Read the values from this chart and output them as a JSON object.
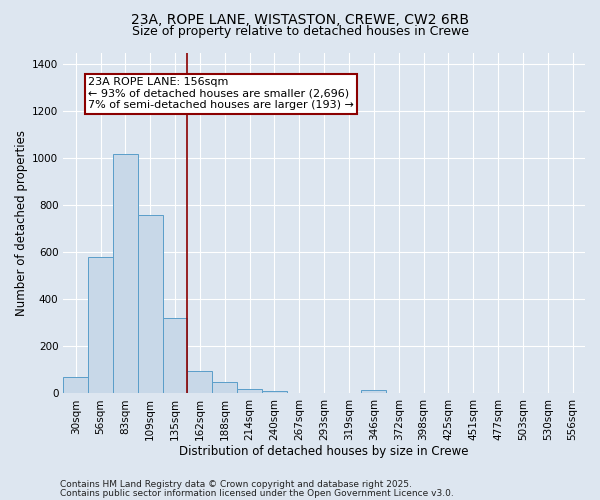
{
  "title_line1": "23A, ROPE LANE, WISTASTON, CREWE, CW2 6RB",
  "title_line2": "Size of property relative to detached houses in Crewe",
  "xlabel": "Distribution of detached houses by size in Crewe",
  "ylabel": "Number of detached properties",
  "categories": [
    "30sqm",
    "56sqm",
    "83sqm",
    "109sqm",
    "135sqm",
    "162sqm",
    "188sqm",
    "214sqm",
    "240sqm",
    "267sqm",
    "293sqm",
    "319sqm",
    "346sqm",
    "372sqm",
    "398sqm",
    "425sqm",
    "451sqm",
    "477sqm",
    "503sqm",
    "530sqm",
    "556sqm"
  ],
  "values": [
    68,
    580,
    1020,
    760,
    320,
    95,
    47,
    18,
    8,
    2,
    0,
    0,
    14,
    0,
    0,
    0,
    0,
    0,
    0,
    0,
    0
  ],
  "bar_color": "#c8d8e8",
  "bar_edge_color": "#5a9ec9",
  "vline_x": 4.5,
  "vline_color": "#8b0000",
  "annotation_line1": "23A ROPE LANE: 156sqm",
  "annotation_line2": "← 93% of detached houses are smaller (2,696)",
  "annotation_line3": "7% of semi-detached houses are larger (193) →",
  "annotation_box_facecolor": "#ffffff",
  "annotation_box_edgecolor": "#8b0000",
  "ylim": [
    0,
    1450
  ],
  "yticks": [
    0,
    200,
    400,
    600,
    800,
    1000,
    1200,
    1400
  ],
  "background_color": "#dde6f0",
  "axes_background": "#dde6f0",
  "grid_color": "#c0ccd8",
  "footer_line1": "Contains HM Land Registry data © Crown copyright and database right 2025.",
  "footer_line2": "Contains public sector information licensed under the Open Government Licence v3.0.",
  "title_fontsize": 10,
  "subtitle_fontsize": 9,
  "axis_label_fontsize": 8.5,
  "tick_fontsize": 7.5,
  "annotation_fontsize": 8,
  "footer_fontsize": 6.5
}
